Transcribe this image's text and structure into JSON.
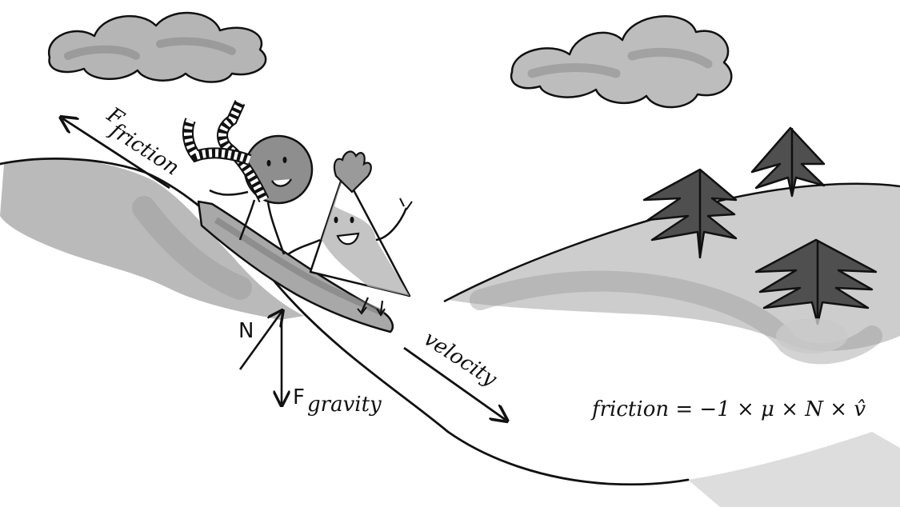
{
  "labels": {
    "friction_force_main": "F",
    "friction_force_sub": "friction",
    "normal_force": "N",
    "gravity_force_main": "F",
    "gravity_force_sub": "gravity",
    "velocity": "velocity",
    "equation": "friction = −1 × μ × N × v̂"
  },
  "colors": {
    "ink": "#111111",
    "snow_shade": "#b8b8b8",
    "snow_shade_dark": "#8f8f8f",
    "cloud": "#a9a9a9",
    "character_fill": "#9a9a9a",
    "tree": "#4a4a4a"
  },
  "icons": [
    "cloud-icon",
    "tree-icon",
    "circle-character-icon",
    "triangle-character-icon",
    "sled-icon",
    "scarf-icon"
  ]
}
